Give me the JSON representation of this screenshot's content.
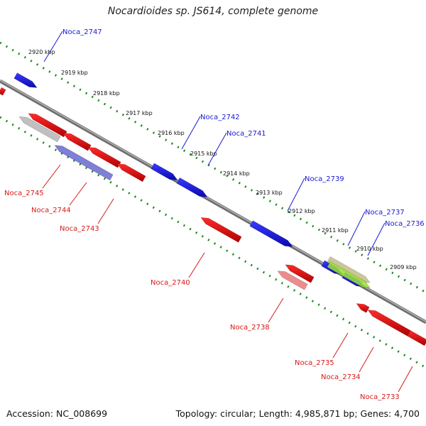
{
  "title": "Nocardioides sp. JS614, complete genome",
  "footer": {
    "accession": "Accession: NC_008699",
    "summary": "Topology: circular; Length: 4,985,871 bp; Genes: 4,700"
  },
  "ticks": [
    "2920 kbp",
    "2919 kbp",
    "2918 kbp",
    "2917 kbp",
    "2916 kbp",
    "2915 kbp",
    "2914 kbp",
    "2913 kbp",
    "2912 kbp",
    "2911 kbp",
    "2910 kbp",
    "2909 kbp"
  ],
  "genes": [
    {
      "label": "Noca_2747",
      "color": "#1a1ad6",
      "strand": "+"
    },
    {
      "label": "Noca_2745",
      "color": "#d61a1a",
      "strand": "-"
    },
    {
      "label": "Noca_2744",
      "color": "#d61a1a",
      "strand": "-"
    },
    {
      "label": "Noca_2743",
      "color": "#d61a1a",
      "strand": "-"
    },
    {
      "label": "Noca_2742",
      "color": "#1a1ad6",
      "strand": "+"
    },
    {
      "label": "Noca_2741",
      "color": "#1a1ad6",
      "strand": "+"
    },
    {
      "label": "Noca_2740",
      "color": "#d61a1a",
      "strand": "-"
    },
    {
      "label": "Noca_2739",
      "color": "#1a1ad6",
      "strand": "+"
    },
    {
      "label": "Noca_2738",
      "color": "#d61a1a",
      "strand": "-"
    },
    {
      "label": "Noca_2737",
      "color": "#1a1ad6",
      "strand": "+"
    },
    {
      "label": "Noca_2736",
      "color": "#1a1ad6",
      "strand": "+"
    },
    {
      "label": "Noca_2735",
      "color": "#d61a1a",
      "strand": "-"
    },
    {
      "label": "Noca_2734",
      "color": "#d61a1a",
      "strand": "-"
    },
    {
      "label": "Noca_2733",
      "color": "#d61a1a",
      "strand": "-"
    }
  ],
  "colors": {
    "forward": "#1a1ad6",
    "reverse": "#d61a1a",
    "backbone": "#808080",
    "tick": "#1e8a1e"
  }
}
